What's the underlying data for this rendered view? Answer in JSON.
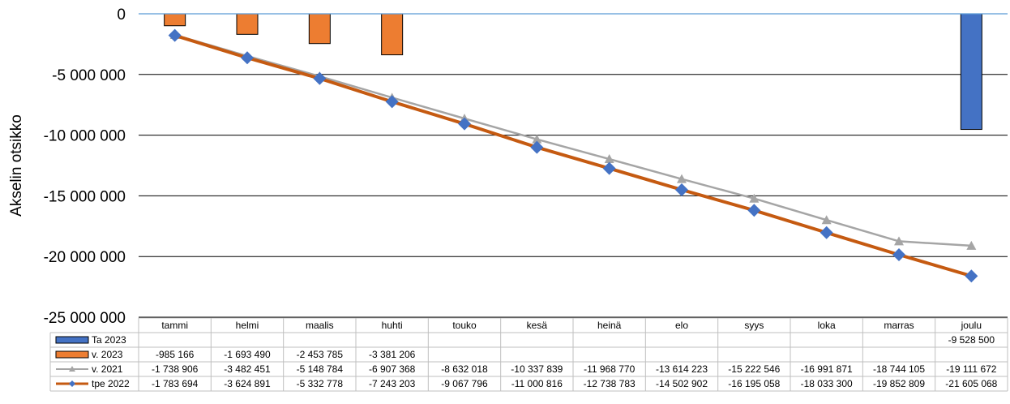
{
  "chart_data": {
    "type": "bar",
    "ylabel": "Akselin otsikko",
    "ylim": [
      -25000000,
      0
    ],
    "yticks": [
      {
        "value": 0,
        "label": "0"
      },
      {
        "value": -5000000,
        "label": "-5 000 000"
      },
      {
        "value": -10000000,
        "label": "-10 000 000"
      },
      {
        "value": -15000000,
        "label": "-15 000 000"
      },
      {
        "value": -20000000,
        "label": "-20 000 000"
      },
      {
        "value": -25000000,
        "label": "-25 000 000"
      }
    ],
    "grid": true,
    "legend": "data-table",
    "categories": [
      "tammi",
      "helmi",
      "maalis",
      "huhti",
      "touko",
      "kesä",
      "heinä",
      "elo",
      "syys",
      "loka",
      "marras",
      "joulu"
    ],
    "series": [
      {
        "name": "Ta 2023",
        "kind": "bar",
        "color": "#4472C4",
        "values": [
          null,
          null,
          null,
          null,
          null,
          null,
          null,
          null,
          null,
          null,
          null,
          -9528500
        ],
        "labels": [
          "",
          "",
          "",
          "",
          "",
          "",
          "",
          "",
          "",
          "",
          "",
          "-9 528 500"
        ]
      },
      {
        "name": "v. 2023",
        "kind": "bar",
        "color": "#ED7D31",
        "values": [
          -985166,
          -1693490,
          -2453785,
          -3381206,
          null,
          null,
          null,
          null,
          null,
          null,
          null,
          null
        ],
        "labels": [
          "-985 166",
          "-1 693 490",
          "-2 453 785",
          "-3 381 206",
          "",
          "",
          "",
          "",
          "",
          "",
          "",
          ""
        ]
      },
      {
        "name": "v. 2021",
        "kind": "line",
        "color": "#A5A5A5",
        "marker": "triangle",
        "values": [
          -1738906,
          -3482451,
          -5148784,
          -6907368,
          -8632018,
          -10337839,
          -11968770,
          -13614223,
          -15222546,
          -16991871,
          -18744105,
          -19111672
        ],
        "labels": [
          "-1 738 906",
          "-3 482 451",
          "-5 148 784",
          "-6 907 368",
          "-8 632 018",
          "-10 337 839",
          "-11 968 770",
          "-13 614 223",
          "-15 222 546",
          "-16 991 871",
          "-18 744 105",
          "-19 111 672"
        ]
      },
      {
        "name": "tpe 2022",
        "kind": "line",
        "color": "#C55A11",
        "marker": "diamond",
        "markerColor": "#4472C4",
        "values": [
          -1783694,
          -3624891,
          -5332778,
          -7243203,
          -9067796,
          -11000816,
          -12738783,
          -14502902,
          -16195058,
          -18033300,
          -19852809,
          -21605068
        ],
        "labels": [
          "-1 783 694",
          "-3 624 891",
          "-5 332 778",
          "-7 243 203",
          "-9 067 796",
          "-11 000 816",
          "-12 738 783",
          "-14 502 902",
          "-16 195 058",
          "-18 033 300",
          "-19 852 809",
          "-21 605 068"
        ]
      }
    ]
  }
}
